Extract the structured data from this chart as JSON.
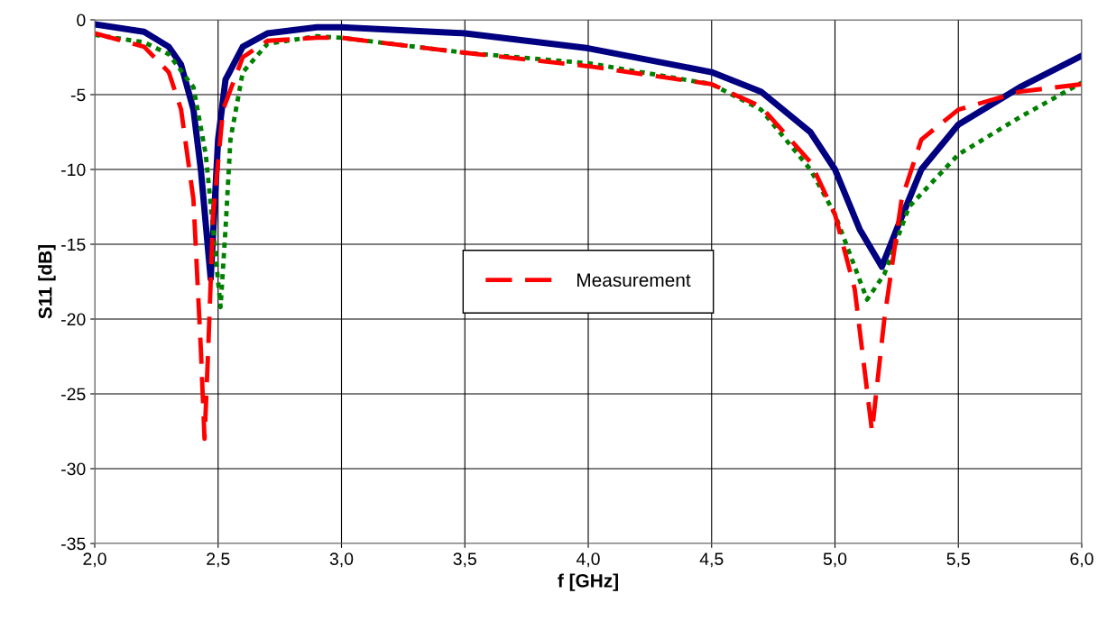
{
  "chart_data": {
    "type": "line",
    "xlabel": "f [GHz]",
    "ylabel": "S11 [dB]",
    "xlim": [
      2.0,
      6.0
    ],
    "ylim": [
      -35,
      0
    ],
    "xticks": [
      {
        "value": 2.0,
        "label": "2,0"
      },
      {
        "value": 2.5,
        "label": "2,5"
      },
      {
        "value": 3.0,
        "label": "3,0"
      },
      {
        "value": 3.5,
        "label": "3,5"
      },
      {
        "value": 4.0,
        "label": "4,0"
      },
      {
        "value": 4.5,
        "label": "4,5"
      },
      {
        "value": 5.0,
        "label": "5,0"
      },
      {
        "value": 5.5,
        "label": "5,5"
      },
      {
        "value": 6.0,
        "label": "6,0"
      }
    ],
    "yticks": [
      -35,
      -30,
      -25,
      -20,
      -15,
      -10,
      -5,
      0
    ],
    "grid": true,
    "legend": "center",
    "marker": "none",
    "series": [
      {
        "color": "#000080",
        "line_style": "solid",
        "x": [
          2.0,
          2.2,
          2.3,
          2.35,
          2.4,
          2.43,
          2.47,
          2.5,
          2.53,
          2.6,
          2.7,
          2.9,
          3.0,
          3.5,
          4.0,
          4.5,
          4.7,
          4.9,
          5.0,
          5.1,
          5.19,
          5.25,
          5.35,
          5.5,
          5.75,
          6.0
        ],
        "values": [
          -0.3,
          -0.8,
          -1.8,
          -3,
          -6,
          -10,
          -17.3,
          -8,
          -4,
          -1.8,
          -0.9,
          -0.5,
          -0.5,
          -0.9,
          -1.9,
          -3.5,
          -4.8,
          -7.5,
          -10,
          -14,
          -16.5,
          -14,
          -10,
          -7,
          -4.5,
          -2.4
        ]
      },
      {
        "color": "#008000",
        "line_style": "dotted",
        "x": [
          2.0,
          2.2,
          2.3,
          2.4,
          2.45,
          2.48,
          2.51,
          2.53,
          2.55,
          2.6,
          2.7,
          2.9,
          3.0,
          3.5,
          4.0,
          4.5,
          4.7,
          4.9,
          5.0,
          5.13,
          5.2,
          5.3,
          5.5,
          5.75,
          6.0
        ],
        "values": [
          -1,
          -1.5,
          -2.3,
          -4.5,
          -9,
          -14,
          -19.2,
          -14,
          -8,
          -3.5,
          -1.6,
          -1.1,
          -1.2,
          -2.2,
          -2.9,
          -4.3,
          -6,
          -10,
          -13,
          -18.7,
          -17,
          -12.5,
          -9,
          -6.5,
          -4.2
        ]
      },
      {
        "name": "Measurement",
        "color": "#ff0000",
        "line_style": "dashed",
        "x": [
          2.0,
          2.2,
          2.3,
          2.35,
          2.4,
          2.43,
          2.445,
          2.46,
          2.48,
          2.52,
          2.6,
          2.7,
          2.9,
          3.0,
          3.5,
          4.0,
          4.5,
          4.7,
          4.9,
          5.0,
          5.08,
          5.15,
          5.2,
          5.27,
          5.35,
          5.5,
          5.75,
          6.0
        ],
        "values": [
          -0.9,
          -1.8,
          -3.5,
          -6,
          -12,
          -22,
          -28,
          -22,
          -13,
          -6,
          -2.5,
          -1.4,
          -1.2,
          -1.2,
          -2.2,
          -3.1,
          -4.3,
          -5.8,
          -9.5,
          -13,
          -18,
          -27.5,
          -20,
          -12,
          -8,
          -6,
          -4.8,
          -4.3
        ]
      }
    ]
  }
}
